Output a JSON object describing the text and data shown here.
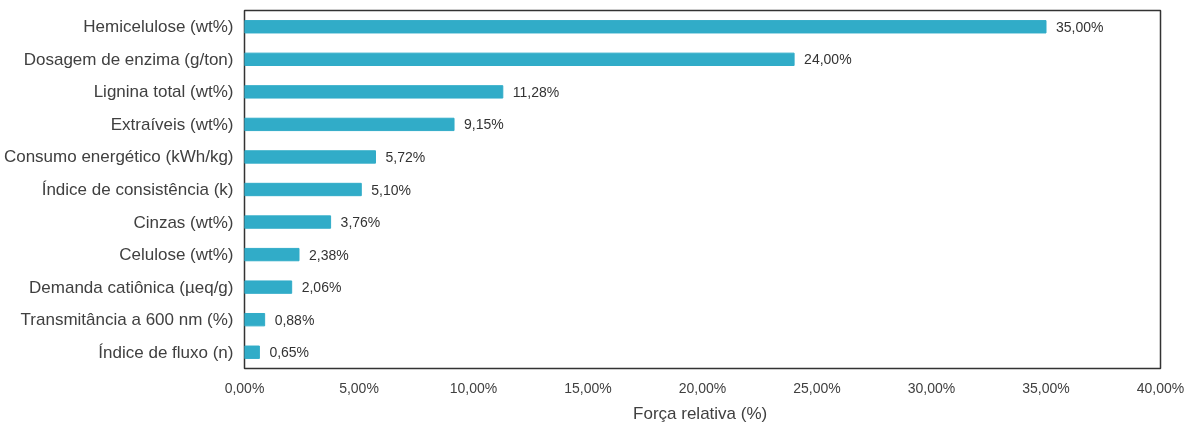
{
  "chart_data": {
    "type": "bar",
    "orientation": "horizontal",
    "xlabel": "Força relativa  (%)",
    "categories": [
      "Hemicelulose (wt%)",
      "Dosagem de enzima (g/ton)",
      "Lignina total (wt%)",
      "Extraíveis (wt%)",
      "Consumo energético (kWh/kg)",
      "Índice de consistência (k)",
      "Cinzas (wt%)",
      "Celulose (wt%)",
      "Demanda catiônica (µeq/g)",
      "Transmitância a 600 nm (%)",
      "Índice de fluxo (n)"
    ],
    "values": [
      35.0,
      24.0,
      11.28,
      9.15,
      5.72,
      5.1,
      3.76,
      2.38,
      2.06,
      0.88,
      0.65
    ],
    "value_labels": [
      "35,00%",
      "24,00%",
      "11,28%",
      "9,15%",
      "5,72%",
      "5,10%",
      "3,76%",
      "2,38%",
      "2,06%",
      "0,88%",
      "0,65%"
    ],
    "color": "#31acc8",
    "xlim": [
      0,
      40
    ],
    "xticks": [
      {
        "value": 0,
        "label": "0,00%"
      },
      {
        "value": 5,
        "label": "5,00%"
      },
      {
        "value": 10,
        "label": "10,00%"
      },
      {
        "value": 15,
        "label": "15,00%"
      },
      {
        "value": 20,
        "label": "20,00%"
      },
      {
        "value": 25,
        "label": "25,00%"
      },
      {
        "value": 30,
        "label": "30,00%"
      },
      {
        "value": 35,
        "label": "35,00%"
      },
      {
        "value": 40,
        "label": "40,00%"
      }
    ],
    "grid": false
  }
}
